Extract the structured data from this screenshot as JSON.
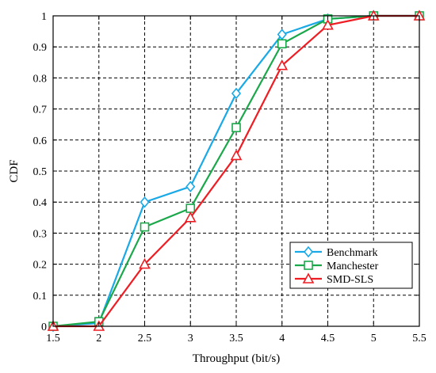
{
  "chart_data": {
    "type": "line",
    "title": "",
    "xlabel": "Throughput (bit/s)",
    "ylabel": "CDF",
    "xlim": [
      1.5,
      5.5
    ],
    "ylim": [
      0,
      1
    ],
    "x_ticks": [
      "1.5",
      "2",
      "2.5",
      "3",
      "3.5",
      "4",
      "4.5",
      "5",
      "5.5"
    ],
    "y_ticks": [
      "0",
      "0.1",
      "0.2",
      "0.3",
      "0.4",
      "0.5",
      "0.6",
      "0.7",
      "0.8",
      "0.9",
      "1"
    ],
    "grid": true,
    "grid_style": "dashed",
    "legend_position": "bottom-right",
    "x": [
      1.5,
      2,
      2.5,
      3,
      3.5,
      4,
      4.5,
      5,
      5.5
    ],
    "series": [
      {
        "name": "Benchmark",
        "color": "#19a9e6",
        "marker": "diamond",
        "values": [
          0,
          0.01,
          0.4,
          0.45,
          0.75,
          0.94,
          0.99,
          1.0,
          1.0
        ]
      },
      {
        "name": "Manchester",
        "color": "#1aa84a",
        "marker": "square",
        "values": [
          0,
          0.015,
          0.32,
          0.38,
          0.64,
          0.91,
          0.99,
          1.0,
          1.0
        ]
      },
      {
        "name": "SMD-SLS",
        "color": "#ee1d23",
        "marker": "triangle",
        "values": [
          0,
          0,
          0.2,
          0.35,
          0.55,
          0.84,
          0.97,
          1.0,
          1.0
        ]
      }
    ]
  }
}
